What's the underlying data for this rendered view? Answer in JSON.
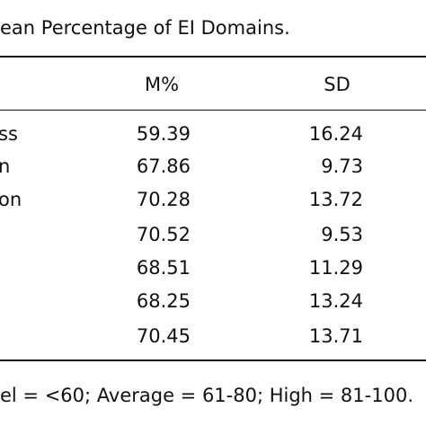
{
  "title": "ean Percentage of EI Domains.",
  "table": {
    "header": [
      "M%",
      "SD"
    ],
    "rows": [
      {
        "label": "ss",
        "m": 59.39,
        "sd": 16.24
      },
      {
        "label": "n",
        "m": 67.86,
        "sd": 9.73
      },
      {
        "label": "on",
        "m": 70.28,
        "sd": 13.72
      },
      {
        "m": 70.52,
        "sd": 9.53
      },
      {
        "m": 68.51,
        "sd": 11.29
      },
      {
        "m": 68.25,
        "sd": 13.24
      },
      {
        "m": 70.45,
        "sd": 13.71
      }
    ]
  },
  "footnote": "el = <60; Average = 61-80; High = 81-100."
}
